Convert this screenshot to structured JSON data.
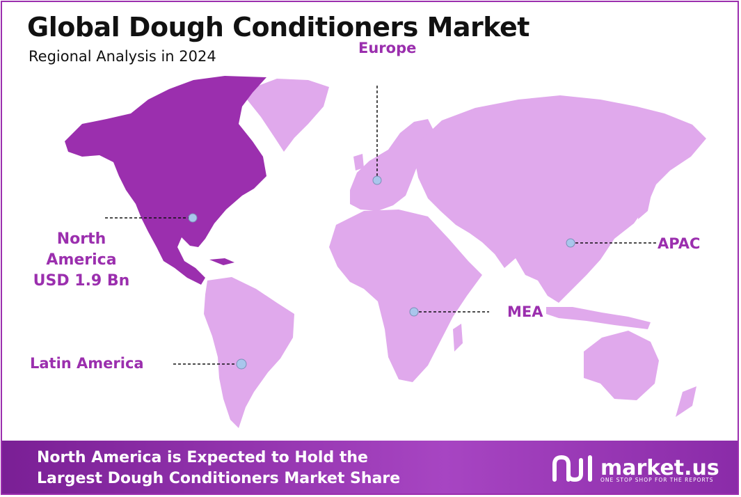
{
  "title": "Global Dough Conditioners Market",
  "subtitle": "Regional Analysis in 2024",
  "regions": {
    "north_america": {
      "line1": "North",
      "line2": "America",
      "line3": "USD 1.9 Bn"
    },
    "europe": "Europe",
    "apac": "APAC",
    "mea": "MEA",
    "latin_america": "Latin America"
  },
  "footer": {
    "line1": "North America is Expected to Hold the",
    "line2": "Largest Dough Conditioners Market Share"
  },
  "logo": {
    "name": "market.us",
    "tagline": "ONE STOP SHOP FOR THE REPORTS"
  },
  "colors": {
    "highlight_region": "#9b2fae",
    "other_regions": "#e0a9ec",
    "marker": "#a9c6ec",
    "label": "#9b2fae",
    "footer": "#8a2ba8"
  }
}
